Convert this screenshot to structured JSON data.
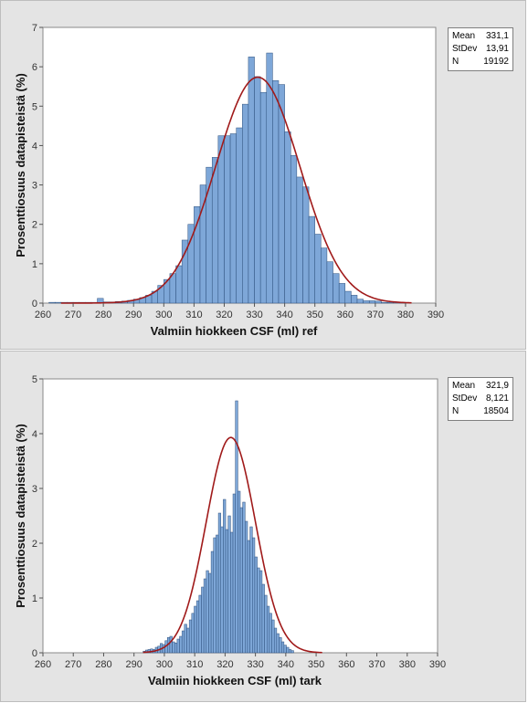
{
  "chart_data": [
    {
      "type": "histogram",
      "xlabel": "Valmiin hiokkeen CSF (ml) ref",
      "ylabel": "Prosenttiosuus datapisteistä (%)",
      "xlim": [
        260,
        390
      ],
      "ylim": [
        0,
        7
      ],
      "xticks": [
        260,
        270,
        280,
        290,
        300,
        310,
        320,
        330,
        340,
        350,
        360,
        370,
        380,
        390
      ],
      "yticks": [
        0,
        1,
        2,
        3,
        4,
        5,
        6,
        7
      ],
      "bin_width": 2,
      "bins": [
        {
          "x": 263,
          "y": 0.02
        },
        {
          "x": 265,
          "y": 0.02
        },
        {
          "x": 267,
          "y": 0.02
        },
        {
          "x": 269,
          "y": 0.02
        },
        {
          "x": 271,
          "y": 0.02
        },
        {
          "x": 273,
          "y": 0.02
        },
        {
          "x": 275,
          "y": 0.02
        },
        {
          "x": 277,
          "y": 0.02
        },
        {
          "x": 279,
          "y": 0.12
        },
        {
          "x": 281,
          "y": 0.03
        },
        {
          "x": 283,
          "y": 0.03
        },
        {
          "x": 285,
          "y": 0.04
        },
        {
          "x": 287,
          "y": 0.05
        },
        {
          "x": 289,
          "y": 0.07
        },
        {
          "x": 291,
          "y": 0.1
        },
        {
          "x": 293,
          "y": 0.14
        },
        {
          "x": 295,
          "y": 0.2
        },
        {
          "x": 297,
          "y": 0.3
        },
        {
          "x": 299,
          "y": 0.45
        },
        {
          "x": 301,
          "y": 0.6
        },
        {
          "x": 303,
          "y": 0.75
        },
        {
          "x": 305,
          "y": 0.95
        },
        {
          "x": 307,
          "y": 1.6
        },
        {
          "x": 309,
          "y": 2.0
        },
        {
          "x": 311,
          "y": 2.45
        },
        {
          "x": 313,
          "y": 3.0
        },
        {
          "x": 315,
          "y": 3.45
        },
        {
          "x": 317,
          "y": 3.7
        },
        {
          "x": 319,
          "y": 4.25
        },
        {
          "x": 321,
          "y": 4.25
        },
        {
          "x": 323,
          "y": 4.3
        },
        {
          "x": 325,
          "y": 4.45
        },
        {
          "x": 327,
          "y": 5.05
        },
        {
          "x": 329,
          "y": 6.25
        },
        {
          "x": 331,
          "y": 5.75
        },
        {
          "x": 333,
          "y": 5.35
        },
        {
          "x": 335,
          "y": 6.35
        },
        {
          "x": 337,
          "y": 5.65
        },
        {
          "x": 339,
          "y": 5.55
        },
        {
          "x": 341,
          "y": 4.35
        },
        {
          "x": 343,
          "y": 3.75
        },
        {
          "x": 345,
          "y": 3.2
        },
        {
          "x": 347,
          "y": 2.95
        },
        {
          "x": 349,
          "y": 2.2
        },
        {
          "x": 351,
          "y": 1.75
        },
        {
          "x": 353,
          "y": 1.4
        },
        {
          "x": 355,
          "y": 1.05
        },
        {
          "x": 357,
          "y": 0.75
        },
        {
          "x": 359,
          "y": 0.5
        },
        {
          "x": 361,
          "y": 0.3
        },
        {
          "x": 363,
          "y": 0.2
        },
        {
          "x": 365,
          "y": 0.1
        },
        {
          "x": 367,
          "y": 0.06
        },
        {
          "x": 369,
          "y": 0.06
        },
        {
          "x": 371,
          "y": 0.05
        },
        {
          "x": 373,
          "y": 0.02
        },
        {
          "x": 375,
          "y": 0.02
        },
        {
          "x": 377,
          "y": 0.02
        },
        {
          "x": 379,
          "y": 0.02
        }
      ],
      "fit": {
        "type": "normal",
        "mean": 331.1,
        "stdev": 13.91,
        "x_range": [
          266,
          382
        ]
      },
      "stats": {
        "Mean": "331,1",
        "StDev": "13,91",
        "N": "19192"
      },
      "colors": {
        "bar_fill": "#7ea7d8",
        "bar_stroke": "#2c4f7c",
        "curve": "#a01a1a",
        "plot_bg": "#ffffff",
        "panel_bg": "#e4e4e4"
      }
    },
    {
      "type": "histogram",
      "xlabel": "Valmiin hiokkeen CSF (ml) tark",
      "ylabel": "Prosenttiosuus datapisteistä (%)",
      "xlim": [
        260,
        390
      ],
      "ylim": [
        0,
        5
      ],
      "xticks": [
        260,
        270,
        280,
        290,
        300,
        310,
        320,
        330,
        340,
        350,
        360,
        370,
        380,
        390
      ],
      "yticks": [
        0,
        1,
        2,
        3,
        4,
        5
      ],
      "bin_width": 0.8,
      "bins": [
        {
          "x": 293.4,
          "y": 0.03
        },
        {
          "x": 294.2,
          "y": 0.05
        },
        {
          "x": 295,
          "y": 0.06
        },
        {
          "x": 295.8,
          "y": 0.07
        },
        {
          "x": 296.6,
          "y": 0.06
        },
        {
          "x": 297.4,
          "y": 0.1
        },
        {
          "x": 298.2,
          "y": 0.12
        },
        {
          "x": 299,
          "y": 0.17
        },
        {
          "x": 299.8,
          "y": 0.15
        },
        {
          "x": 300.6,
          "y": 0.22
        },
        {
          "x": 301.4,
          "y": 0.28
        },
        {
          "x": 302.2,
          "y": 0.3
        },
        {
          "x": 303,
          "y": 0.2
        },
        {
          "x": 303.8,
          "y": 0.18
        },
        {
          "x": 304.6,
          "y": 0.25
        },
        {
          "x": 305.4,
          "y": 0.3
        },
        {
          "x": 306.2,
          "y": 0.4
        },
        {
          "x": 307,
          "y": 0.52
        },
        {
          "x": 307.8,
          "y": 0.45
        },
        {
          "x": 308.6,
          "y": 0.6
        },
        {
          "x": 309.4,
          "y": 0.72
        },
        {
          "x": 310.2,
          "y": 0.85
        },
        {
          "x": 311,
          "y": 0.95
        },
        {
          "x": 311.8,
          "y": 1.05
        },
        {
          "x": 312.6,
          "y": 1.2
        },
        {
          "x": 313.4,
          "y": 1.35
        },
        {
          "x": 314.2,
          "y": 1.5
        },
        {
          "x": 315,
          "y": 1.45
        },
        {
          "x": 315.8,
          "y": 1.85
        },
        {
          "x": 316.6,
          "y": 2.1
        },
        {
          "x": 317.4,
          "y": 2.15
        },
        {
          "x": 318.2,
          "y": 2.55
        },
        {
          "x": 319,
          "y": 2.3
        },
        {
          "x": 319.8,
          "y": 2.8
        },
        {
          "x": 320.6,
          "y": 2.25
        },
        {
          "x": 321.4,
          "y": 2.5
        },
        {
          "x": 322.2,
          "y": 2.2
        },
        {
          "x": 323,
          "y": 2.9
        },
        {
          "x": 323.8,
          "y": 4.6
        },
        {
          "x": 324.6,
          "y": 2.95
        },
        {
          "x": 325.4,
          "y": 2.65
        },
        {
          "x": 326.2,
          "y": 2.75
        },
        {
          "x": 327,
          "y": 2.4
        },
        {
          "x": 327.8,
          "y": 2.05
        },
        {
          "x": 328.6,
          "y": 2.3
        },
        {
          "x": 329.4,
          "y": 2.1
        },
        {
          "x": 330.2,
          "y": 1.75
        },
        {
          "x": 331,
          "y": 1.55
        },
        {
          "x": 331.8,
          "y": 1.5
        },
        {
          "x": 332.6,
          "y": 1.25
        },
        {
          "x": 333.4,
          "y": 1.05
        },
        {
          "x": 334.2,
          "y": 0.85
        },
        {
          "x": 335,
          "y": 0.72
        },
        {
          "x": 335.8,
          "y": 0.6
        },
        {
          "x": 336.6,
          "y": 0.45
        },
        {
          "x": 337.4,
          "y": 0.35
        },
        {
          "x": 338.2,
          "y": 0.28
        },
        {
          "x": 339,
          "y": 0.2
        },
        {
          "x": 339.8,
          "y": 0.14
        },
        {
          "x": 340.6,
          "y": 0.1
        },
        {
          "x": 341.4,
          "y": 0.06
        },
        {
          "x": 342.2,
          "y": 0.04
        }
      ],
      "fit": {
        "type": "normal",
        "mean": 321.9,
        "stdev": 8.121,
        "x_range": [
          293,
          352
        ]
      },
      "stats": {
        "Mean": "321,9",
        "StDev": "8,121",
        "N": "18504"
      },
      "colors": {
        "bar_fill": "#7ea7d8",
        "bar_stroke": "#2c4f7c",
        "curve": "#a01a1a",
        "plot_bg": "#ffffff",
        "panel_bg": "#e4e4e4"
      }
    }
  ]
}
